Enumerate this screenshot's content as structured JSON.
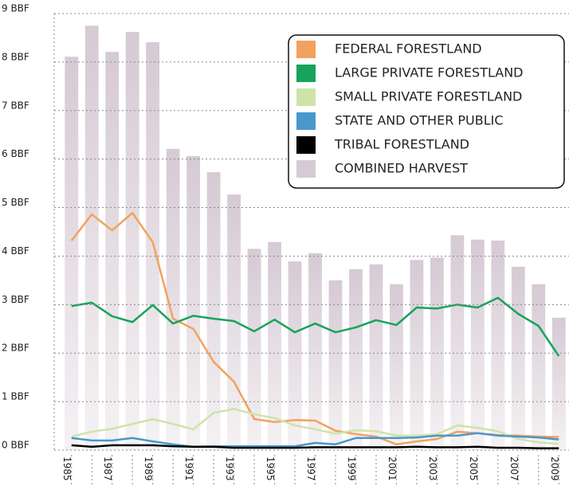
{
  "chart_data": {
    "type": "combo",
    "categories": [
      "1985",
      null,
      "1987",
      null,
      "1989",
      null,
      "1991",
      null,
      "1993",
      null,
      "1995",
      null,
      "1997",
      null,
      "1999",
      null,
      "2001",
      null,
      "2003",
      null,
      "2005",
      null,
      "2007",
      null,
      "2009"
    ],
    "ylim": [
      0,
      9
    ],
    "yticks": [
      {
        "value": 0,
        "label": "0 BBF"
      },
      {
        "value": 1,
        "label": "1 BBF"
      },
      {
        "value": 2,
        "label": "2 BBF"
      },
      {
        "value": 3,
        "label": "3 BBF"
      },
      {
        "value": 4,
        "label": "4 BBF"
      },
      {
        "value": 5,
        "label": "5 BBF"
      },
      {
        "value": 6,
        "label": "6 BBF"
      },
      {
        "value": 7,
        "label": "7 BBF"
      },
      {
        "value": 8,
        "label": "8 BBF"
      },
      {
        "value": 9,
        "label": "9 BBF"
      }
    ],
    "grid": true,
    "legend": "upper right",
    "series": [
      {
        "name": "FEDERAL FORESTLAND",
        "type": "line",
        "color": "#f2a25c",
        "values": [
          4.32,
          4.86,
          4.53,
          4.89,
          4.29,
          2.71,
          2.5,
          1.82,
          1.41,
          0.64,
          0.58,
          0.62,
          0.61,
          0.4,
          0.33,
          0.28,
          0.12,
          0.18,
          0.23,
          0.38,
          0.35,
          0.31,
          0.3,
          0.28,
          0.27
        ]
      },
      {
        "name": "LARGE PRIVATE FORESTLAND",
        "type": "line",
        "color": "#17a35b",
        "values": [
          2.97,
          3.04,
          2.76,
          2.64,
          2.99,
          2.61,
          2.77,
          2.71,
          2.66,
          2.45,
          2.69,
          2.43,
          2.61,
          2.43,
          2.53,
          2.68,
          2.58,
          2.94,
          2.92,
          3.0,
          2.94,
          3.14,
          2.81,
          2.56,
          1.94
        ]
      },
      {
        "name": "SMALL PRIVATE FORESTLAND",
        "type": "line",
        "color": "#cfe3a8",
        "values": [
          0.28,
          0.38,
          0.44,
          0.54,
          0.64,
          0.54,
          0.43,
          0.77,
          0.85,
          0.74,
          0.66,
          0.51,
          0.43,
          0.34,
          0.41,
          0.39,
          0.3,
          0.3,
          0.33,
          0.51,
          0.46,
          0.39,
          0.23,
          0.16,
          0.13
        ]
      },
      {
        "name": "STATE AND OTHER PUBLIC",
        "type": "line",
        "color": "#4a97cc",
        "values": [
          0.25,
          0.2,
          0.2,
          0.25,
          0.18,
          0.12,
          0.07,
          0.08,
          0.08,
          0.08,
          0.08,
          0.08,
          0.15,
          0.12,
          0.25,
          0.25,
          0.25,
          0.26,
          0.3,
          0.3,
          0.35,
          0.3,
          0.28,
          0.26,
          0.22
        ]
      },
      {
        "name": "TRIBAL FORESTLAND",
        "type": "line",
        "color": "#000000",
        "values": [
          0.1,
          0.07,
          0.1,
          0.1,
          0.1,
          0.08,
          0.07,
          0.07,
          0.05,
          0.05,
          0.05,
          0.05,
          0.06,
          0.06,
          0.06,
          0.06,
          0.06,
          0.07,
          0.06,
          0.06,
          0.07,
          0.05,
          0.05,
          0.04,
          0.04
        ]
      },
      {
        "name": "COMBINED HARVEST",
        "type": "bar",
        "color": "#d6cad4",
        "values": [
          8.11,
          8.75,
          8.21,
          8.62,
          8.41,
          6.21,
          6.06,
          5.73,
          5.27,
          4.15,
          4.29,
          3.89,
          4.06,
          3.5,
          3.73,
          3.83,
          3.42,
          3.92,
          3.97,
          4.43,
          4.34,
          4.32,
          3.78,
          3.42,
          2.73
        ]
      }
    ]
  }
}
